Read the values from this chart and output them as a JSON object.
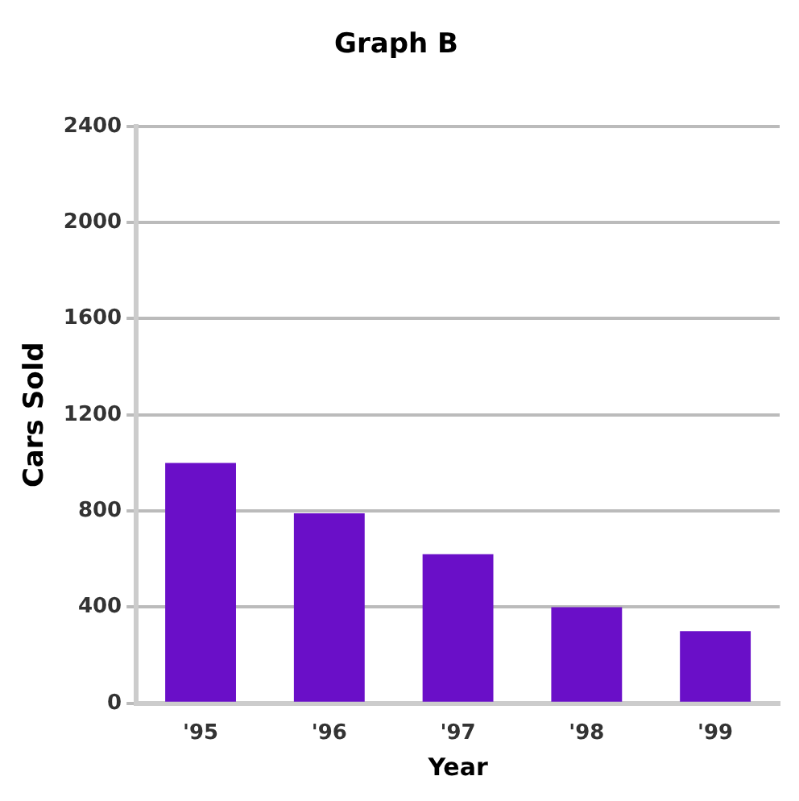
{
  "chart_data": {
    "type": "bar",
    "title": "Graph B",
    "xlabel": "Year",
    "ylabel": "Cars Sold",
    "categories": [
      "'95",
      "'96",
      "'97",
      "'98",
      "'99"
    ],
    "values": [
      1000,
      790,
      620,
      400,
      300
    ],
    "color": "#6a0fc8",
    "ylim": [
      0,
      2400
    ],
    "yticks": [
      0,
      400,
      800,
      1200,
      1600,
      2000,
      2400
    ],
    "grid": "y"
  }
}
